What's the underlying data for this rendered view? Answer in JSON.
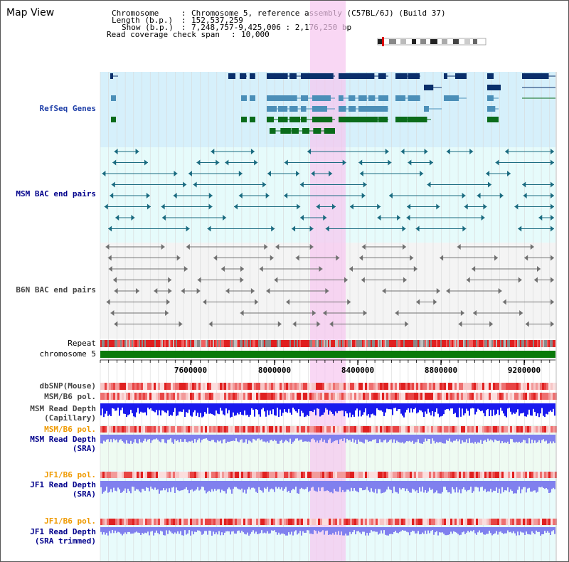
{
  "title": "Map View",
  "header": {
    "chromosome_label": "Chromosome",
    "chromosome_value": "Chromosome 5, reference assembly (C57BL/6J) (Build 37)",
    "length_label": "Length (b.p.)",
    "length_value": "152,537,259",
    "show_label": "Show (b.p.)",
    "show_value": "7,248,757-9,425,006 : 2,176,250 bp",
    "span_label": "Read coverage check span",
    "span_value": "10,000"
  },
  "tracks": {
    "refseq": "RefSeq Genes",
    "msm_bac": "MSM BAC end pairs",
    "b6n_bac": "B6N BAC end pairs",
    "repeat": "Repeat",
    "chromosome": "chromosome 5",
    "dbsnp": "dbSNP(Mouse)",
    "msm_b6_pol_1": "MSM/B6 pol.",
    "msm_depth_cap_1": "MSM Read Depth",
    "msm_depth_cap_2": "(Capillary)",
    "msm_b6_pol_2": "MSM/B6 pol.",
    "msm_depth_sra_1": "MSM Read Depth",
    "msm_depth_sra_2": "(SRA)",
    "jf1_b6_pol_1": "JF1/B6 pol.",
    "jf1_depth_sra_1": "JF1 Read Depth",
    "jf1_depth_sra_2": "(SRA)",
    "jf1_b6_pol_2": "JF1/B6 pol.",
    "jf1_depth_trim_1": "JF1 Read Depth",
    "jf1_depth_trim_2": "(SRA trimmed)"
  },
  "axis": {
    "ticks": [
      "7600000",
      "8000000",
      "8400000",
      "8800000",
      "9200000"
    ]
  },
  "colors": {
    "refseq_bg": "#d6f0fb",
    "msm_bg": "#e6fbfb",
    "b6n_bg": "#f4f4f4",
    "highlight": "#f6c6f0",
    "gene_dark": "#0a2f6b",
    "gene_mid": "#4b8fb8",
    "gene_green": "#0a6b1a",
    "chromosome": "#0a7a0a",
    "msm_pair": "#1a6b80",
    "b6n_pair": "#707070",
    "depth_cap": "#1a1aee",
    "depth_sra": "#8080ee"
  }
}
